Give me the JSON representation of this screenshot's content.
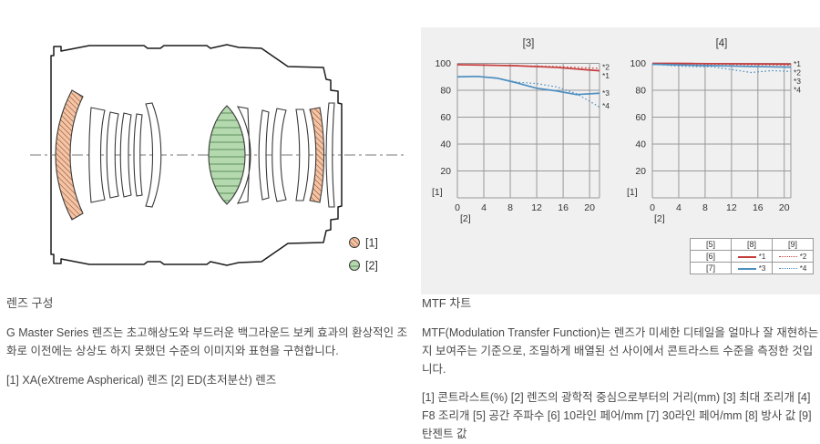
{
  "lens_section": {
    "heading": "렌즈 구성",
    "body": "G Master Series 렌즈는 초고해상도와 부드러운 백그라운드 보케 효과의 환상적인 조화로 이전에는 상상도 하지 못했던 수준의 이미지와 표현을 구현합니다.",
    "footnote": "[1] XA(eXtreme Aspherical) 렌즈 [2] ED(초저분산) 렌즈",
    "legend": [
      {
        "marker": "xa-orange-hatch",
        "label": "[1]"
      },
      {
        "marker": "ed-green-hatch",
        "label": "[2]"
      }
    ]
  },
  "mtf_section": {
    "heading": "MTF 차트",
    "body": "MTF(Modulation Transfer Function)는 렌즈가 미세한 디테일을 얼마나 잘 재현하는지 보여주는 기준으로, 조밀하게 배열된 선 사이에서 콘트라스트 수준을 측정한 것입니다.",
    "footnote": "[1] 콘트라스트(%) [2] 렌즈의 광학적 중심으로부터의 거리(mm) [3] 최대 조리개 [4] F8 조리개 [5] 공간 주파수 [6] 10라인 페어/mm [7] 30라인 페어/mm [8] 방사 값 [9] 탄젠트 값",
    "legend_table": {
      "headers": [
        "[5]",
        "[8]",
        "[9]"
      ],
      "rows": [
        {
          "label": "[6]",
          "cells": [
            {
              "line": "solid-red",
              "name": "*1"
            },
            {
              "line": "dotted-red",
              "name": "*2"
            }
          ]
        },
        {
          "label": "[7]",
          "cells": [
            {
              "line": "solid-blue",
              "name": "*3"
            },
            {
              "line": "dotted-blue",
              "name": "*4"
            }
          ]
        }
      ]
    }
  },
  "colors": {
    "red": "#c63c3c",
    "blue": "#4e8fc0",
    "panel_bg": "#f0f0f1",
    "grid": "#999999",
    "text": "#4a4a4a",
    "orange_fill": "#f6c4a4",
    "orange_hatch": "#7a4a2e",
    "green_fill": "#b5d9ae",
    "green_hatch": "#5d8f5d"
  },
  "chart_data": [
    {
      "type": "line",
      "title": "[3]",
      "xlabel": "[2]",
      "ylabel": "[1]",
      "xlim": [
        0,
        21.5
      ],
      "ylim": [
        0,
        100
      ],
      "xticks": [
        0,
        4,
        8,
        12,
        16,
        20
      ],
      "yticks": [
        20,
        40,
        60,
        80,
        100
      ],
      "grid": true,
      "x": [
        0,
        3,
        6,
        9,
        12,
        15,
        18,
        21.5
      ],
      "series": [
        {
          "name": "*1",
          "color": "#c63c3c",
          "style": "solid",
          "values": [
            99,
            98.8,
            98.5,
            98.2,
            97.6,
            97,
            95.8,
            94.5
          ]
        },
        {
          "name": "*2",
          "color": "#c63c3c",
          "style": "dotted",
          "values": [
            99,
            98.8,
            98.6,
            98.3,
            98,
            97.6,
            97,
            96.3
          ]
        },
        {
          "name": "*3",
          "color": "#4e8fc0",
          "style": "solid",
          "values": [
            90,
            90.3,
            89,
            85.5,
            81.5,
            79.5,
            76.8,
            77.8
          ]
        },
        {
          "name": "*4",
          "color": "#4e8fc0",
          "style": "dotted",
          "values": [
            90,
            90.3,
            89,
            86,
            85,
            82.5,
            77.5,
            67.5
          ]
        }
      ],
      "right_labels": [
        "*2",
        "*1",
        "*3",
        "*4"
      ]
    },
    {
      "type": "line",
      "title": "[4]",
      "xlabel": "[2]",
      "ylabel": "[1]",
      "xlim": [
        0,
        21
      ],
      "ylim": [
        0,
        100
      ],
      "xticks": [
        0,
        4,
        8,
        12,
        16,
        20
      ],
      "yticks": [
        20,
        40,
        60,
        80,
        100
      ],
      "grid": true,
      "x": [
        0,
        3,
        6,
        9,
        12,
        15,
        18,
        21
      ],
      "series": [
        {
          "name": "*1",
          "color": "#c63c3c",
          "style": "solid",
          "values": [
            100,
            100,
            99.9,
            99.8,
            99.7,
            99.6,
            99.5,
            99.4
          ]
        },
        {
          "name": "*2",
          "color": "#c63c3c",
          "style": "dotted",
          "values": [
            99.8,
            99.7,
            99.5,
            99.4,
            99.2,
            99,
            98.9,
            98.7
          ]
        },
        {
          "name": "*3",
          "color": "#4e8fc0",
          "style": "solid",
          "values": [
            99.3,
            99,
            98.6,
            98.3,
            98,
            97.7,
            97.4,
            97.2
          ]
        },
        {
          "name": "*4",
          "color": "#4e8fc0",
          "style": "dotted",
          "values": [
            99.8,
            98.2,
            97.6,
            97.4,
            95.4,
            93.2,
            94.6,
            94
          ]
        }
      ],
      "right_labels": [
        "*1",
        "*2",
        "*3",
        "*4"
      ]
    }
  ]
}
